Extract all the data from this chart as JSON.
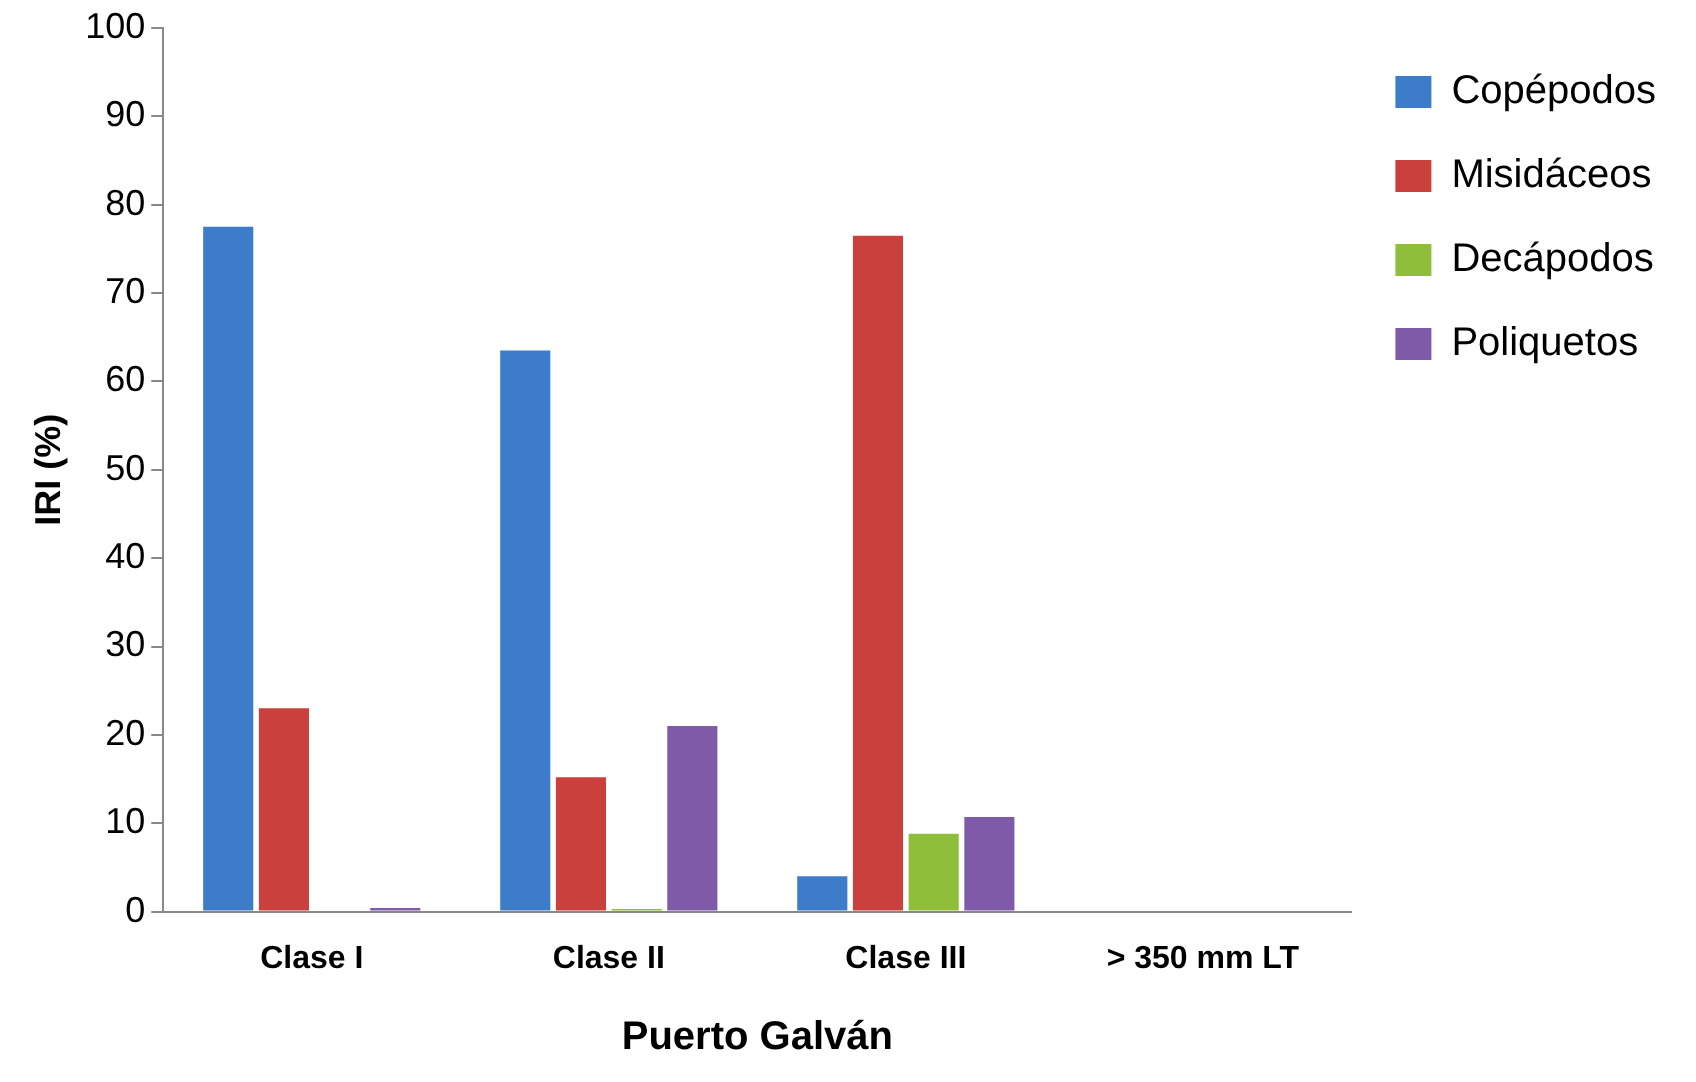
{
  "chart_data": {
    "type": "bar",
    "xlabel": "Puerto Galván",
    "ylabel": "IRI (%)",
    "categories": [
      "Clase I",
      "Clase II",
      "Clase III",
      "> 350 mm LT"
    ],
    "series": [
      {
        "name": "Copépodos",
        "color": "#3d7cc9",
        "values": [
          77.5,
          63.5,
          4,
          0
        ]
      },
      {
        "name": "Misidáceos",
        "color": "#c9403c",
        "values": [
          23,
          15.2,
          76.5,
          0
        ]
      },
      {
        "name": "Decápodos",
        "color": "#8fbf3a",
        "values": [
          0,
          0.3,
          8.8,
          0
        ]
      },
      {
        "name": "Poliquetos",
        "color": "#7f5aa8",
        "values": [
          0.4,
          21,
          10.7,
          0
        ]
      }
    ],
    "ylim": [
      0,
      100
    ],
    "yticks": [
      0,
      10,
      20,
      30,
      40,
      50,
      60,
      70,
      80,
      90,
      100
    ],
    "grid": false,
    "legend": "top right"
  }
}
